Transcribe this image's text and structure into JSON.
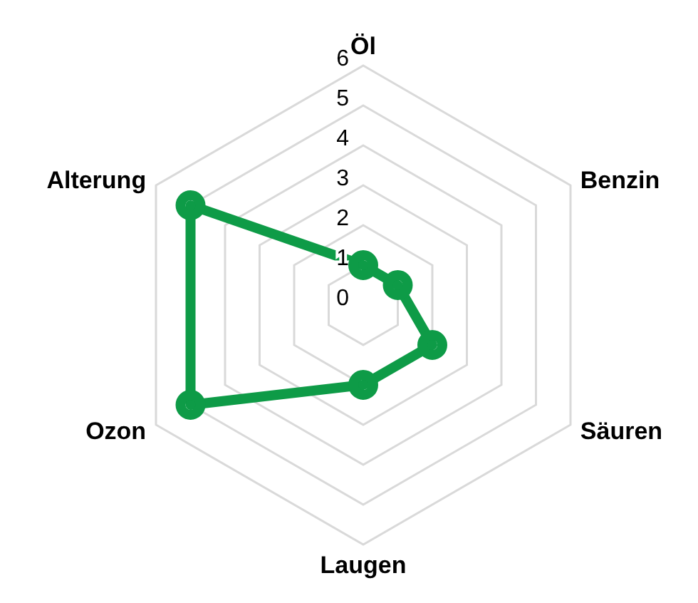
{
  "chart_data": {
    "type": "radar",
    "categories": [
      "Öl",
      "Benzin",
      "Säuren",
      "Laugen",
      "Ozon",
      "Alterung"
    ],
    "series": [
      {
        "color": "#0e9b47",
        "values": [
          1,
          1,
          2,
          2,
          5,
          5
        ]
      }
    ],
    "ylim": [
      0,
      6
    ],
    "yticks": [
      0,
      1,
      2,
      3,
      4,
      5,
      6
    ],
    "grid": true,
    "marker": "circle",
    "legend": false
  }
}
